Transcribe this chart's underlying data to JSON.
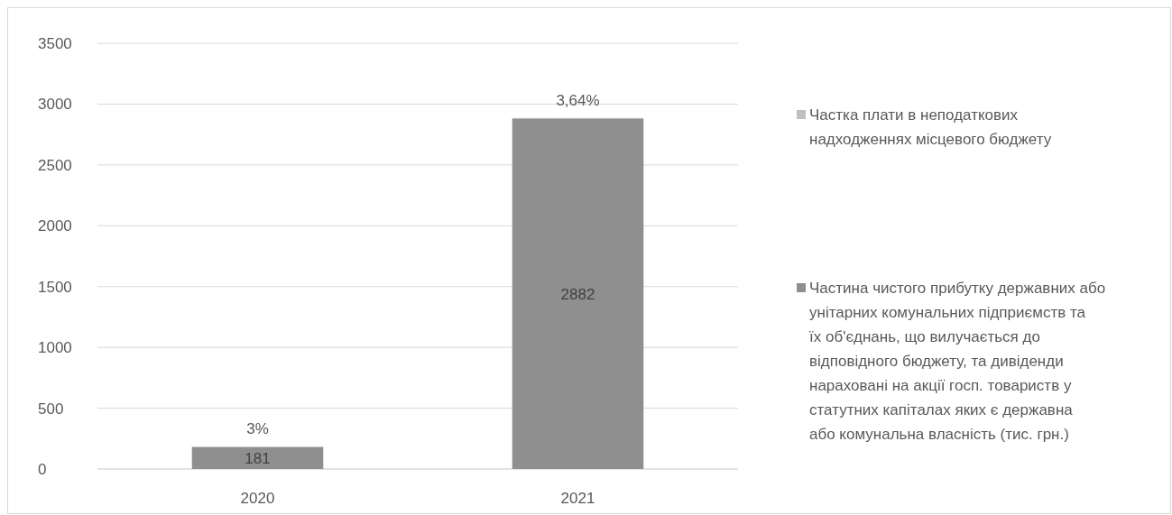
{
  "chart_data": {
    "type": "bar",
    "stacked": true,
    "categories": [
      "2020",
      "2021"
    ],
    "series": [
      {
        "name": "Частина чистого прибутку державних або унітарних комунальних підприємств та їх об'єднань, що вилучається до відповідного бюджету, та дивіденди нараховані на акції госп. товариств у статутних капіталах яких є державна або комунальна власність (тис. грн.)",
        "color": "#8f8f8f",
        "values": [
          181,
          2882
        ],
        "value_labels": [
          "181",
          "2882"
        ]
      },
      {
        "name": "Частка плати в неподаткових надходженнях місцевого бюджету",
        "color": "#bfbfbf",
        "values": [
          3,
          3.64
        ],
        "value_labels": [
          "3%",
          "3,64%"
        ]
      }
    ],
    "ylim": [
      0,
      3500
    ],
    "yticks": [
      0,
      500,
      1000,
      1500,
      2000,
      2500,
      3000,
      3500
    ],
    "grid": "y",
    "legend": "right"
  }
}
